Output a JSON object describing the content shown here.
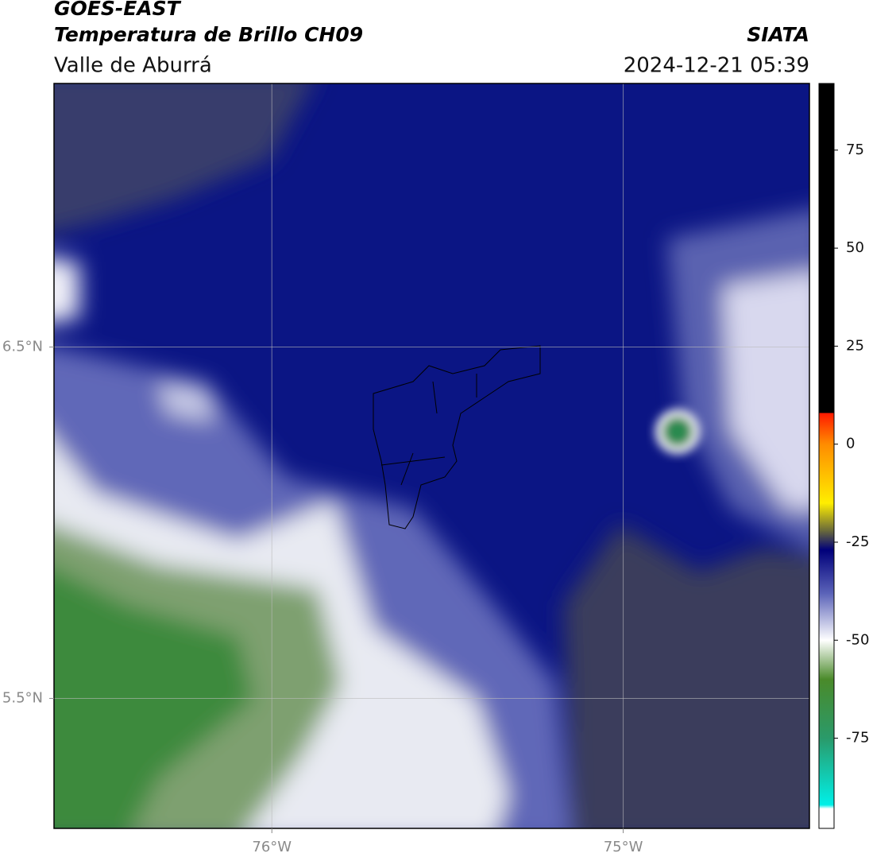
{
  "header": {
    "title": "GOES-EAST",
    "subtitle": "Temperatura de Brillo CH09",
    "region": "Valle de Aburrá",
    "source": "SIATA",
    "datetime": "2024-12-21 05:39"
  },
  "map": {
    "xlim": [
      -76.62,
      -74.47
    ],
    "ylim": [
      5.13,
      7.25
    ],
    "xticks": [
      {
        "value": -76,
        "label": "76°W"
      },
      {
        "value": -75,
        "label": "75°W"
      }
    ],
    "yticks": [
      {
        "value": 6.5,
        "label": "6.5°N"
      },
      {
        "value": 5.5,
        "label": "5.5°N"
      }
    ],
    "grid": true
  },
  "colorbar": {
    "lim": [
      -98,
      92
    ],
    "ticks": [
      75,
      50,
      25,
      0,
      -25,
      -50,
      -75
    ],
    "stops": [
      {
        "value": 92,
        "color": "#000000"
      },
      {
        "value": 8,
        "color": "#000000"
      },
      {
        "value": 7.9,
        "color": "#ff1a00"
      },
      {
        "value": 0,
        "color": "#ff8c00"
      },
      {
        "value": -15,
        "color": "#ffee00"
      },
      {
        "value": -22,
        "color": "#6b6b3a"
      },
      {
        "value": -27,
        "color": "#00007a"
      },
      {
        "value": -38,
        "color": "#5a62b8"
      },
      {
        "value": -50,
        "color": "#ffffff"
      },
      {
        "value": -60,
        "color": "#4a8a2a"
      },
      {
        "value": -75,
        "color": "#2a9a6a"
      },
      {
        "value": -92,
        "color": "#00f0e8"
      },
      {
        "value": -93,
        "color": "#ffffff"
      },
      {
        "value": -98,
        "color": "#ffffff"
      }
    ]
  }
}
